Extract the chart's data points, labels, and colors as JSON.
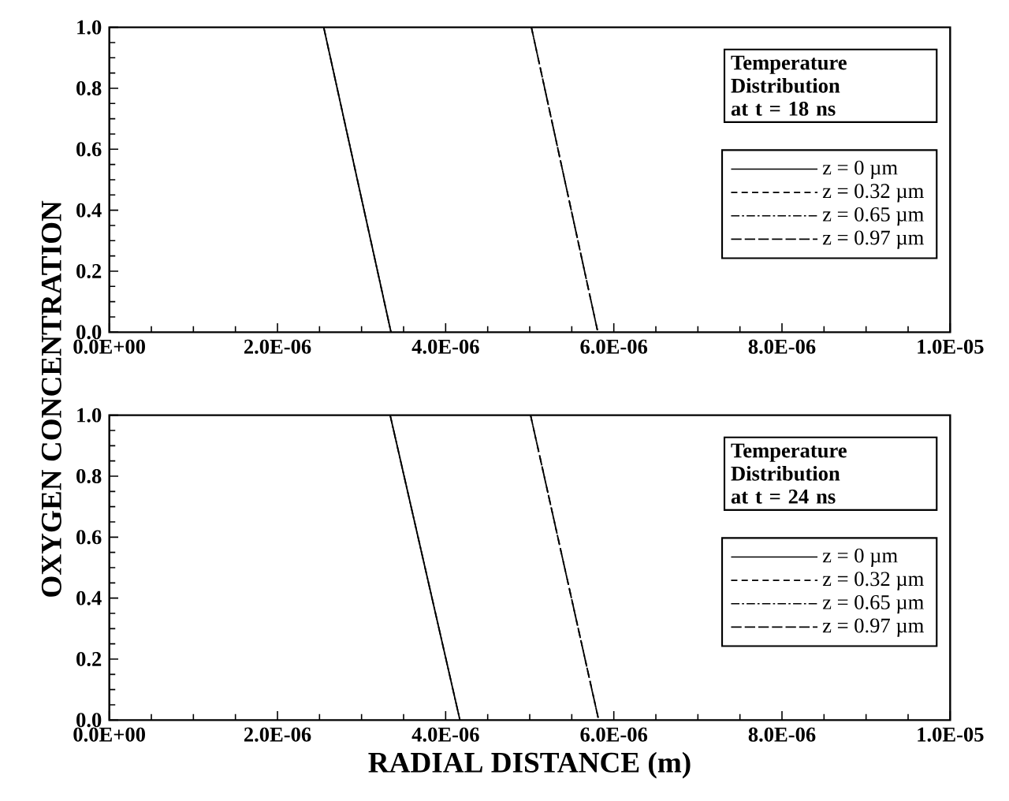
{
  "chart_data": [
    {
      "type": "line",
      "legend_title": "Temperature Distribution\nat t = 18 ns",
      "ylabel": "OXYGEN CONCENTRATION",
      "xlim": [
        0,
        1e-05
      ],
      "ylim": [
        0,
        1
      ],
      "xticks": [
        {
          "value": 0,
          "label": "0.0E+00"
        },
        {
          "value": 2e-06,
          "label": "2.0E-06"
        },
        {
          "value": 4e-06,
          "label": "4.0E-06"
        },
        {
          "value": 6e-06,
          "label": "6.0E-06"
        },
        {
          "value": 8e-06,
          "label": "8.0E-06"
        },
        {
          "value": 1e-05,
          "label": "1.0E-05"
        }
      ],
      "yticks": [
        {
          "value": 0,
          "label": "0.0"
        },
        {
          "value": 0.2,
          "label": "0.2"
        },
        {
          "value": 0.4,
          "label": "0.4"
        },
        {
          "value": 0.6,
          "label": "0.6"
        },
        {
          "value": 0.8,
          "label": "0.8"
        },
        {
          "value": 1,
          "label": "1.0"
        }
      ],
      "legend": "right",
      "grid": false,
      "series": [
        {
          "name": "z = 0 µm",
          "color": "#000000",
          "line_style": "solid",
          "x": [
            2.55e-06,
            3.35e-06
          ],
          "values": [
            1,
            0
          ]
        },
        {
          "name": "z = 0.32 µm",
          "color": "#000000",
          "line_style": "dashed",
          "x": [
            5.02e-06,
            5.81e-06
          ],
          "values": [
            1,
            0
          ]
        },
        {
          "name": "z = 0.65 µm",
          "color": "#000000",
          "line_style": "dashdot",
          "x": [
            2.55e-06,
            3.35e-06
          ],
          "values": [
            1,
            0
          ]
        },
        {
          "name": "z = 0.97 µm",
          "color": "#000000",
          "line_style": "longdashed",
          "x": [
            5.02e-06,
            5.81e-06
          ],
          "values": [
            1,
            0
          ]
        }
      ]
    },
    {
      "type": "line",
      "legend_title": "Temperature Distribution\nat t = 24 ns",
      "xlabel": "RADIAL DISTANCE (m)",
      "xlim": [
        0,
        1e-05
      ],
      "ylim": [
        0,
        1
      ],
      "xticks": [
        {
          "value": 0,
          "label": "0.0E+00"
        },
        {
          "value": 2e-06,
          "label": "2.0E-06"
        },
        {
          "value": 4e-06,
          "label": "4.0E-06"
        },
        {
          "value": 6e-06,
          "label": "6.0E-06"
        },
        {
          "value": 8e-06,
          "label": "8.0E-06"
        },
        {
          "value": 1e-05,
          "label": "1.0E-05"
        }
      ],
      "yticks": [
        {
          "value": 0,
          "label": "0.0"
        },
        {
          "value": 0.2,
          "label": "0.2"
        },
        {
          "value": 0.4,
          "label": "0.4"
        },
        {
          "value": 0.6,
          "label": "0.6"
        },
        {
          "value": 0.8,
          "label": "0.8"
        },
        {
          "value": 1,
          "label": "1.0"
        }
      ],
      "legend": "right",
      "grid": false,
      "series": [
        {
          "name": "z = 0 µm",
          "color": "#000000",
          "line_style": "solid",
          "x": [
            3.34e-06,
            4.17e-06
          ],
          "values": [
            1,
            0
          ]
        },
        {
          "name": "z = 0.32 µm",
          "color": "#000000",
          "line_style": "dashed",
          "x": [
            5.01e-06,
            5.82e-06
          ],
          "values": [
            1,
            0
          ]
        },
        {
          "name": "z = 0.65 µm",
          "color": "#000000",
          "line_style": "dashdot",
          "x": [
            3.34e-06,
            4.17e-06
          ],
          "values": [
            1,
            0
          ]
        },
        {
          "name": "z = 0.97 µm",
          "color": "#000000",
          "line_style": "longdashed",
          "x": [
            5.01e-06,
            5.82e-06
          ],
          "values": [
            1,
            0
          ]
        }
      ]
    }
  ]
}
